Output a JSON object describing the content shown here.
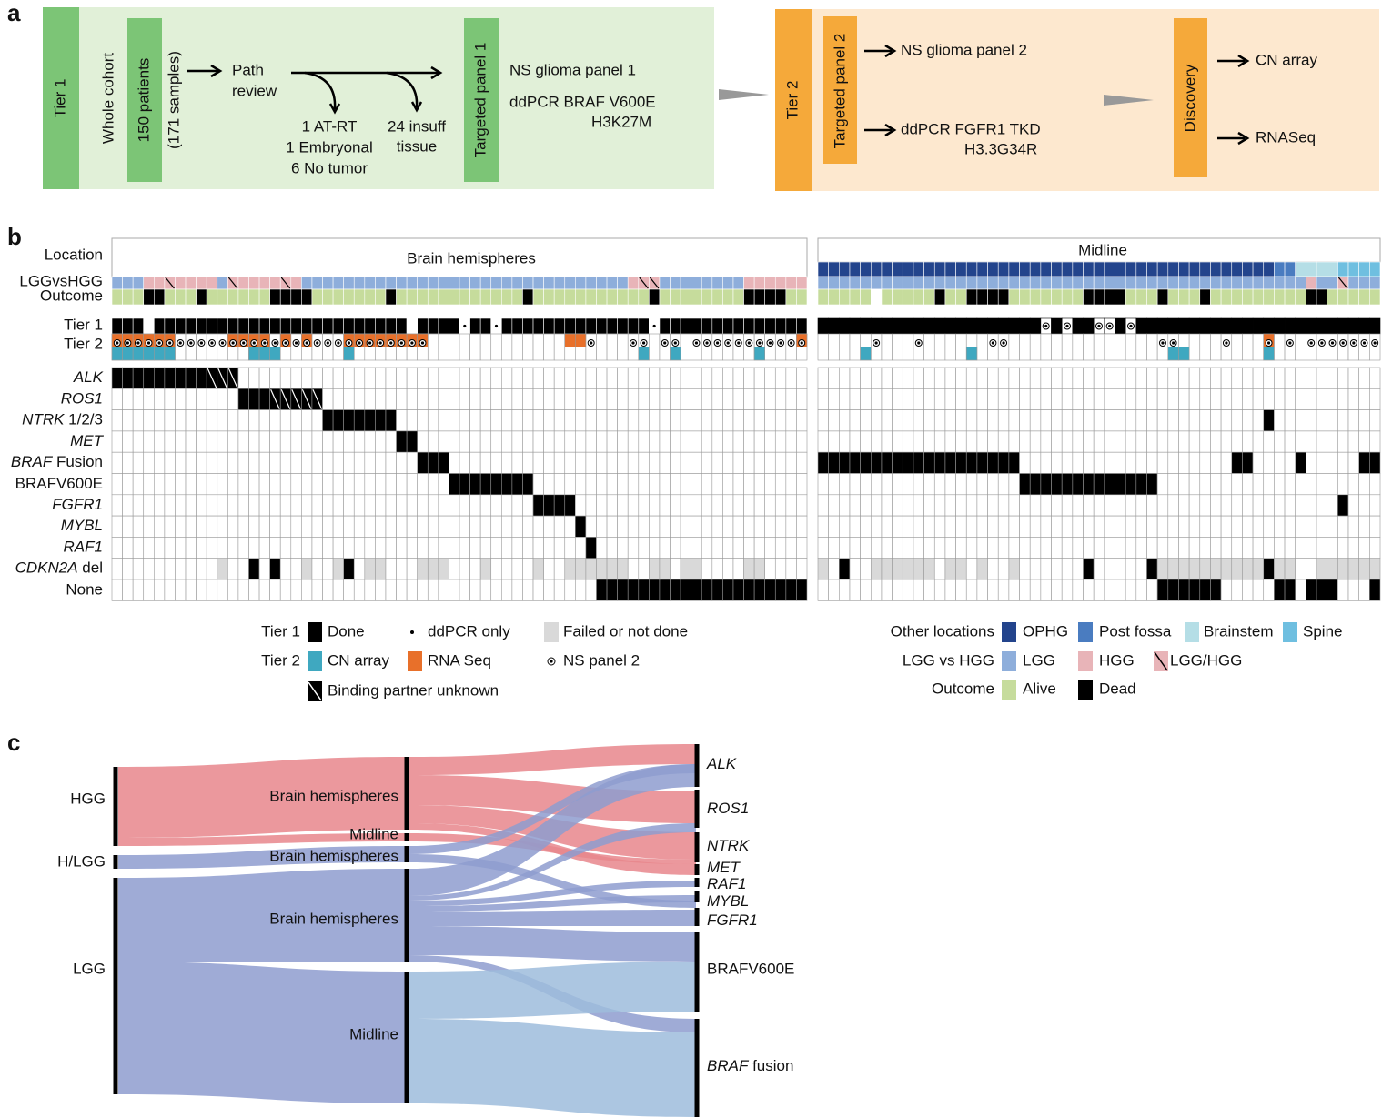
{
  "panel_a": {
    "label": "a",
    "tier1": {
      "label": "Tier 1",
      "cohort": "Whole cohort",
      "patients": "150 patients",
      "samples": "(171 samples)",
      "path_review": [
        "Path",
        "review"
      ],
      "excluded": [
        "1 AT-RT",
        "1 Embryonal",
        "6 No tumor"
      ],
      "insufficient": [
        "24 insuff",
        "tissue"
      ],
      "panel": "Targeted panel 1",
      "assays": [
        "NS glioma panel 1",
        "ddPCR BRAF V600E",
        "H3K27M"
      ]
    },
    "tier2": {
      "label": "Tier 2",
      "panel": "Targeted panel 2",
      "assays": [
        "NS glioma panel 2",
        "ddPCR FGFR1 TKD",
        "H3.3G34R"
      ],
      "discovery": "Discovery",
      "discovery_assays": [
        "CN array",
        "RNASeq"
      ]
    }
  },
  "panel_b": {
    "label": "b",
    "row_labels": [
      "Location",
      "LGGvsHGG",
      "Outcome",
      "Tier 1",
      "Tier 2"
    ],
    "groups": [
      "Brain hemispheres",
      "Midline"
    ],
    "genes": [
      "ALK",
      "ROS1",
      "NTRK 1/2/3",
      "MET",
      "BRAF Fusion",
      "BRAFV600E",
      "FGFR1",
      "MYBL",
      "RAF1",
      "CDKN2A del",
      "None"
    ],
    "legend": {
      "tier1": "Tier 1",
      "done": "Done",
      "ddpcr": "ddPCR only",
      "failed": "Failed or not done",
      "tier2": "Tier 2",
      "cn": "CN array",
      "rna": "RNA Seq",
      "ns": "NS panel 2",
      "binding": "Binding partner unknown",
      "other": "Other locations",
      "ophg": "OPHG",
      "post": "Post fossa",
      "brainstem": "Brainstem",
      "spine": "Spine",
      "lvh": "LGG vs HGG",
      "lgg": "LGG",
      "hgg": "HGG",
      "lgghgg": "LGG/HGG",
      "outcome": "Outcome",
      "alive": "Alive",
      "dead": "Dead"
    }
  },
  "panel_c": {
    "label": "c",
    "left_nodes": [
      "HGG",
      "H/LGG",
      "LGG"
    ],
    "mid_nodes": [
      "Brain hemispheres",
      "Midline",
      "Brain hemispheres",
      "Brain hemispheres",
      "Midline"
    ],
    "right_nodes": [
      "ALK",
      "ROS1",
      "NTRK",
      "MET",
      "RAF1",
      "MYBL",
      "FGFR1",
      "BRAFV600E",
      "BRAF fusion"
    ]
  }
}
